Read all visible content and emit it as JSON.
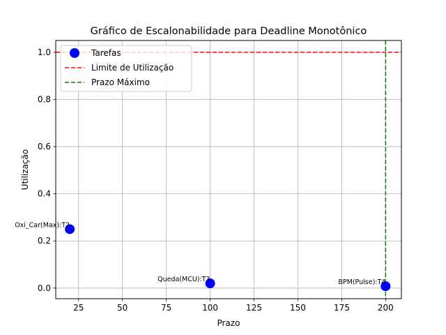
{
  "chart_data": {
    "type": "scatter",
    "title": "Gráfico de Escalonabilidade para Deadline Monotônico",
    "xlabel": "Prazo",
    "ylabel": "Utilização",
    "xlim": [
      12,
      209
    ],
    "ylim": [
      -0.045,
      1.05
    ],
    "xticks": [
      25,
      50,
      75,
      100,
      125,
      150,
      175,
      200
    ],
    "yticks": [
      0.0,
      0.2,
      0.4,
      0.6,
      0.8,
      1.0
    ],
    "xtick_labels": [
      "25",
      "50",
      "75",
      "100",
      "125",
      "150",
      "175",
      "200"
    ],
    "ytick_labels": [
      "0.0",
      "0.2",
      "0.4",
      "0.6",
      "0.8",
      "1.0"
    ],
    "grid": true,
    "legend_position": "top-left",
    "series": [
      {
        "name": "Tarefas",
        "color": "#0000ff",
        "points": [
          {
            "x": 20,
            "y": 0.25,
            "label": "Oxi_Car(Max):T2"
          },
          {
            "x": 100,
            "y": 0.02,
            "label": "Queda(MCU):T3"
          },
          {
            "x": 200,
            "y": 0.008,
            "label": "BPM(Pulse):T4"
          }
        ]
      }
    ],
    "reference_lines": [
      {
        "name": "Limite de Utilização",
        "orientation": "horizontal",
        "value": 1.0,
        "color": "#ff0000",
        "style": "dashed"
      },
      {
        "name": "Prazo Máximo",
        "orientation": "vertical",
        "value": 200,
        "color": "#008000",
        "style": "dashed"
      }
    ]
  }
}
